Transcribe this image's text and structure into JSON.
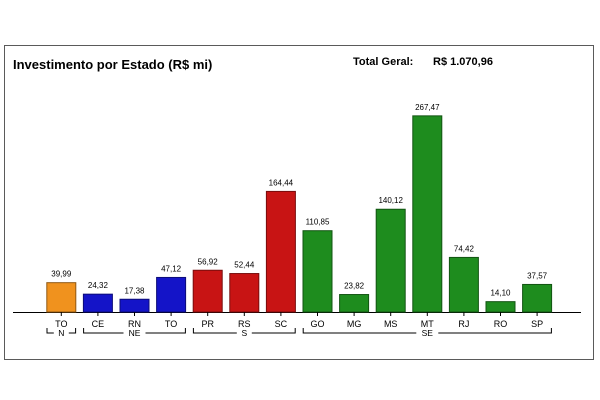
{
  "header": {
    "title": "Investimento por Estado (R$ mi)",
    "total_label": "Total Geral:",
    "total_value": "R$ 1.070,96"
  },
  "chart_data": {
    "type": "bar",
    "title": "Investimento por Estado (R$ mi)",
    "categories": [
      "TO",
      "CE",
      "RN",
      "TO",
      "PR",
      "RS",
      "SC",
      "GO",
      "MG",
      "MS",
      "MT",
      "RJ",
      "RO",
      "SP"
    ],
    "values": [
      39.99,
      24.32,
      17.38,
      47.12,
      56.92,
      52.44,
      164.44,
      110.85,
      23.82,
      140.12,
      267.47,
      74.42,
      14.1,
      37.57
    ],
    "value_labels": [
      "39,99",
      "24,32",
      "17,38",
      "47,12",
      "56,92",
      "52,44",
      "164,44",
      "110,85",
      "23,82",
      "140,12",
      "267,47",
      "74,42",
      "14,10",
      "37,57"
    ],
    "ylim": [
      0,
      270
    ],
    "groups": [
      {
        "name": "N",
        "start": 0,
        "end": 0,
        "color": "#F0921E"
      },
      {
        "name": "NE",
        "start": 1,
        "end": 3,
        "color": "#1414C8"
      },
      {
        "name": "S",
        "start": 4,
        "end": 6,
        "color": "#C81414"
      },
      {
        "name": "SE",
        "start": 7,
        "end": 13,
        "color": "#1E8C1E"
      }
    ]
  }
}
